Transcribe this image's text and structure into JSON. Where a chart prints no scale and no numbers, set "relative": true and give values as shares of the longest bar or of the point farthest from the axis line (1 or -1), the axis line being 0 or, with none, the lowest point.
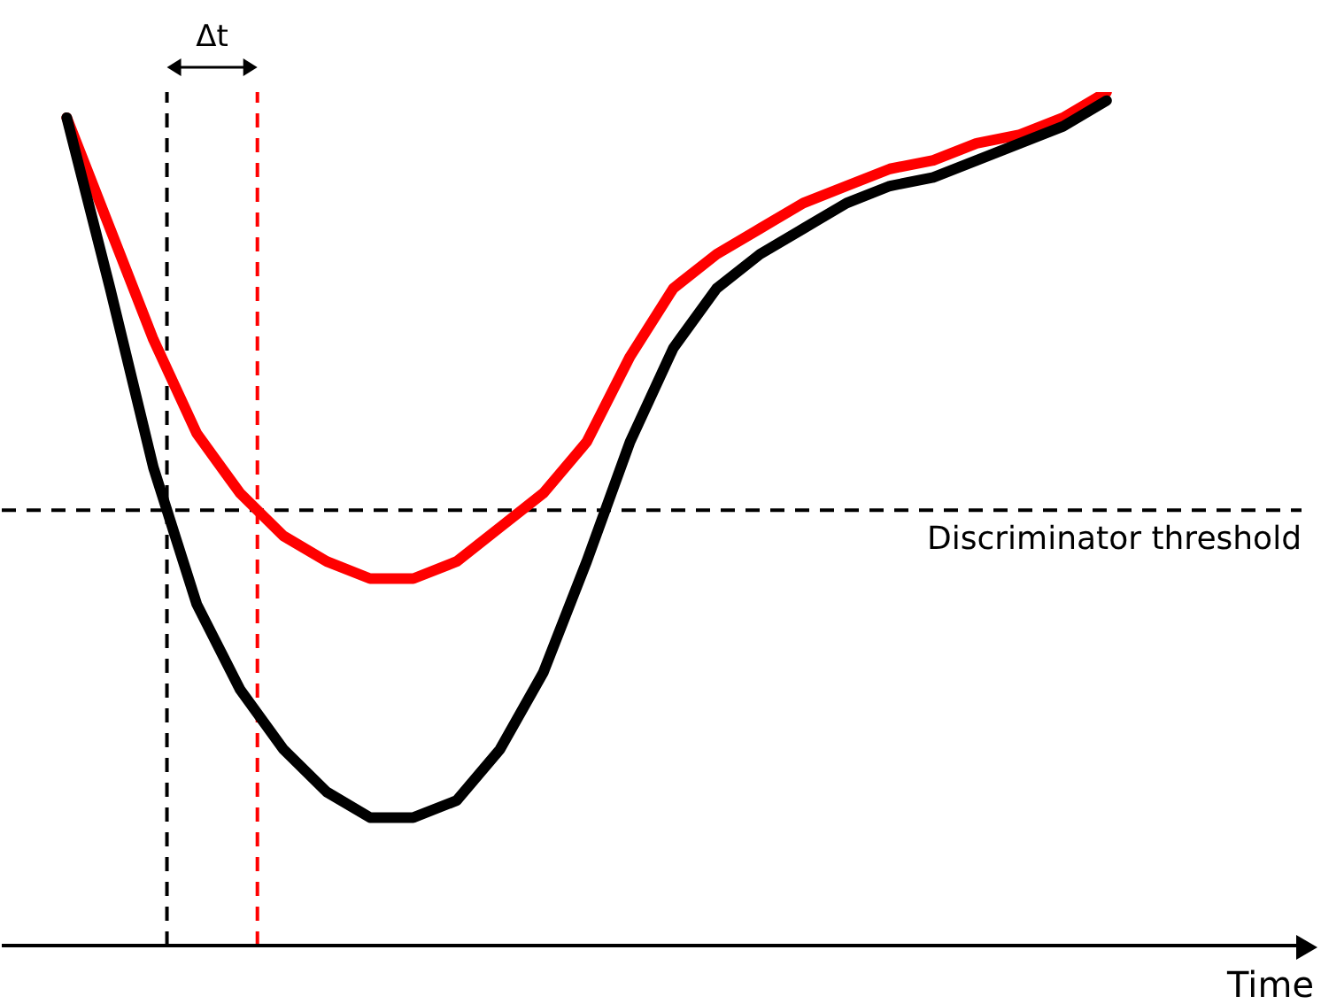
{
  "chart_data": {
    "type": "line",
    "relative": true,
    "xlabel": "Time",
    "line_style": "solid",
    "categories": [
      null,
      null,
      null,
      null,
      null,
      null,
      null,
      null,
      null,
      null,
      null,
      null,
      null,
      null,
      null,
      null,
      null,
      null,
      null,
      null,
      null,
      null,
      null,
      null,
      null,
      null,
      null,
      null,
      null,
      null
    ],
    "annotations": [
      "Δt"
    ],
    "marker": "none",
    "ref_lines": [
      {
        "axis": "y",
        "value": 0.51,
        "label": "Discriminator threshold",
        "color": "#000000",
        "line_style": "dashed"
      }
    ],
    "series": [
      {
        "color": "#ff0000",
        "values": [
          null,
          0.97,
          0.84,
          0.71,
          0.6,
          0.53,
          0.48,
          0.45,
          0.43,
          0.43,
          0.45,
          0.49,
          0.53,
          0.59,
          0.69,
          0.77,
          0.81,
          0.84,
          0.87,
          0.89,
          0.91,
          0.92,
          0.94,
          0.95,
          0.97,
          1.0,
          null,
          null,
          null,
          null
        ]
      },
      {
        "color": "#000000",
        "values": [
          null,
          0.97,
          0.77,
          0.56,
          0.4,
          0.3,
          0.23,
          0.18,
          0.15,
          0.15,
          0.17,
          0.23,
          0.32,
          0.45,
          0.59,
          0.7,
          0.77,
          0.81,
          0.84,
          0.87,
          0.89,
          0.9,
          0.92,
          0.94,
          0.96,
          0.99,
          null,
          null,
          null,
          null
        ]
      }
    ]
  }
}
